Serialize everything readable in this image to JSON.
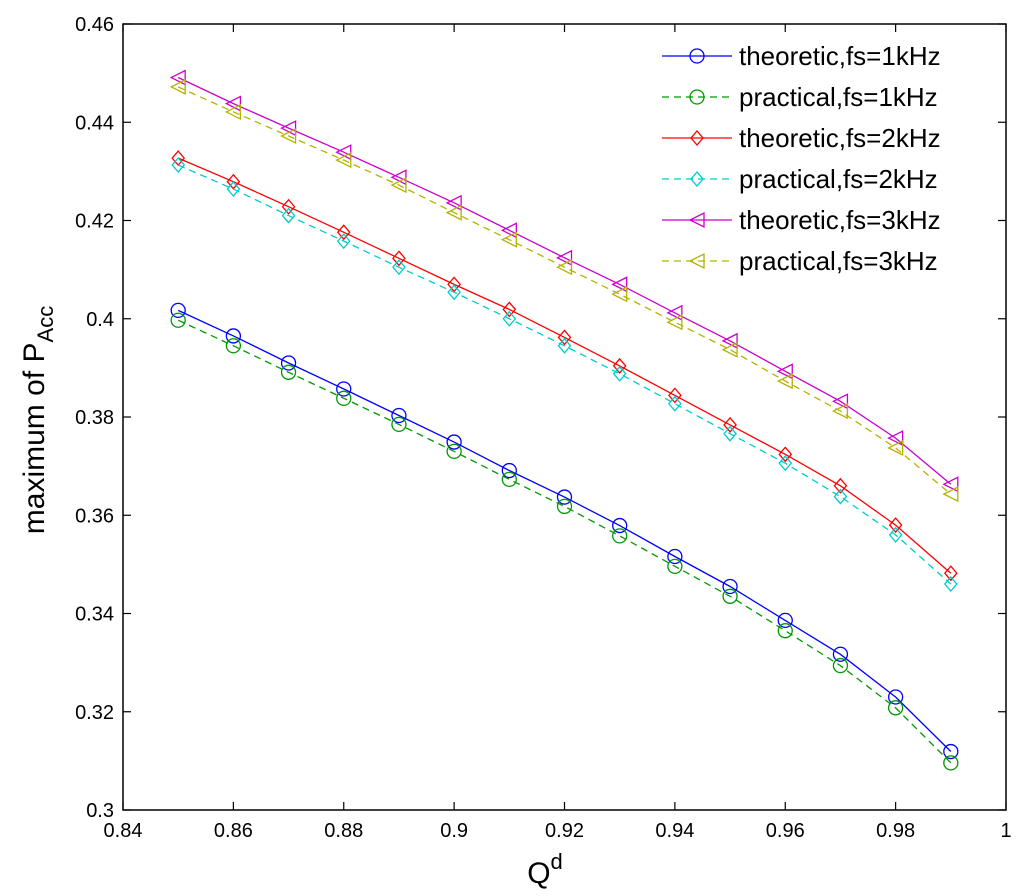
{
  "chart_data": {
    "type": "line",
    "xlabel": {
      "main": "Q",
      "sup": "d"
    },
    "ylabel": {
      "main": "maximum of P",
      "sub": "Acc"
    },
    "xlim": [
      0.84,
      1.0
    ],
    "ylim": [
      0.3,
      0.46
    ],
    "xticks": [
      "0.84",
      "0.86",
      "0.88",
      "0.9",
      "0.92",
      "0.94",
      "0.96",
      "0.98",
      "1"
    ],
    "yticks": [
      "0.3",
      "0.32",
      "0.34",
      "0.36",
      "0.38",
      "0.4",
      "0.42",
      "0.44",
      "0.46"
    ],
    "grid": false,
    "legend_position": "top-right",
    "x": [
      0.85,
      0.86,
      0.87,
      0.88,
      0.89,
      0.9,
      0.91,
      0.92,
      0.93,
      0.94,
      0.95,
      0.96,
      0.97,
      0.98,
      0.99
    ],
    "series": [
      {
        "name": "theoretic,fs=1kHz",
        "color": "#0000ff",
        "dash": "solid",
        "marker": "circle",
        "values": [
          0.4017,
          0.3965,
          0.391,
          0.3857,
          0.3803,
          0.3749,
          0.3691,
          0.3637,
          0.3579,
          0.3516,
          0.3455,
          0.3386,
          0.3317,
          0.323,
          0.3119
        ]
      },
      {
        "name": "practical,fs=1kHz",
        "color": "#009900",
        "dash": "dashed",
        "marker": "circle",
        "values": [
          0.3997,
          0.3945,
          0.3891,
          0.3838,
          0.3785,
          0.373,
          0.3673,
          0.3618,
          0.3558,
          0.3496,
          0.3435,
          0.3365,
          0.3294,
          0.3208,
          0.3096
        ]
      },
      {
        "name": "theoretic,fs=2kHz",
        "color": "#ff0000",
        "dash": "solid",
        "marker": "diamond",
        "values": [
          0.4327,
          0.4279,
          0.4228,
          0.4176,
          0.4123,
          0.407,
          0.4019,
          0.3962,
          0.3904,
          0.3844,
          0.3784,
          0.3724,
          0.366,
          0.358,
          0.3482
        ]
      },
      {
        "name": "practical,fs=2kHz",
        "color": "#00cccc",
        "dash": "dashed",
        "marker": "diamond",
        "values": [
          0.4313,
          0.4264,
          0.421,
          0.4158,
          0.4105,
          0.4054,
          0.4,
          0.3945,
          0.3888,
          0.3827,
          0.3766,
          0.3706,
          0.3638,
          0.356,
          0.346
        ]
      },
      {
        "name": "theoretic,fs=3kHz",
        "color": "#cc00cc",
        "dash": "solid",
        "marker": "triangle-left",
        "values": [
          0.4491,
          0.4438,
          0.4388,
          0.4339,
          0.4288,
          0.4236,
          0.418,
          0.4124,
          0.407,
          0.4012,
          0.3955,
          0.3893,
          0.3832,
          0.3757,
          0.3663
        ]
      },
      {
        "name": "practical,fs=3kHz",
        "color": "#b3b300",
        "dash": "dashed",
        "marker": "triangle-left",
        "values": [
          0.4472,
          0.4421,
          0.4372,
          0.4323,
          0.4272,
          0.4216,
          0.4161,
          0.4105,
          0.405,
          0.3993,
          0.3937,
          0.3873,
          0.3812,
          0.3737,
          0.3643
        ]
      }
    ]
  }
}
